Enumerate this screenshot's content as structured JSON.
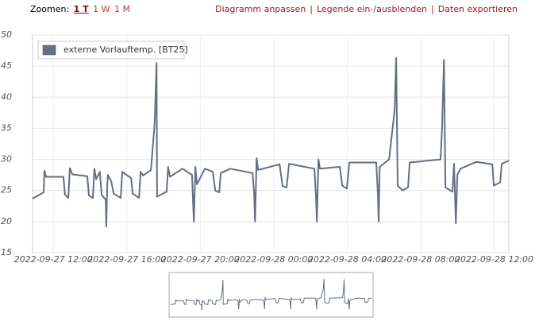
{
  "toolbar": {
    "zoom_label": "Zoomen:",
    "zoom_options": [
      "1 T",
      "1 W",
      "1 M"
    ],
    "separator": "|",
    "links": [
      "Diagramm anpassen",
      "Legende ein-/ausblenden",
      "Daten exportieren"
    ]
  },
  "chart_data": {
    "type": "line",
    "x": [
      "2022-09-27 10:52",
      "2022-09-27 11:28",
      "2022-09-27 11:31",
      "2022-09-27 11:36",
      "2022-09-27 12:33",
      "2022-09-27 12:38",
      "2022-09-27 12:49",
      "2022-09-27 12:54",
      "2022-09-27 13:02",
      "2022-09-27 13:51",
      "2022-09-27 13:56",
      "2022-09-27 14:09",
      "2022-09-27 14:14",
      "2022-09-27 14:20",
      "2022-09-27 14:32",
      "2022-09-27 14:38",
      "2022-09-27 14:51",
      "2022-09-27 14:53",
      "2022-09-27 14:56",
      "2022-09-27 14:58",
      "2022-09-27 15:09",
      "2022-09-27 15:17",
      "2022-09-27 15:40",
      "2022-09-27 15:45",
      "2022-09-27 16:14",
      "2022-09-27 16:19",
      "2022-09-27 16:40",
      "2022-09-27 16:45",
      "2022-09-27 16:53",
      "2022-09-27 17:19",
      "2022-09-27 17:31",
      "2022-09-27 17:37",
      "2022-09-27 17:39",
      "2022-09-27 18:10",
      "2022-09-27 18:15",
      "2022-09-27 18:21",
      "2022-09-27 19:02",
      "2022-09-27 19:33",
      "2022-09-27 19:39",
      "2022-09-27 19:44",
      "2022-09-27 19:49",
      "2022-09-27 20:15",
      "2022-09-27 20:41",
      "2022-09-27 20:49",
      "2022-09-27 21:02",
      "2022-09-27 21:07",
      "2022-09-27 21:38",
      "2022-09-27 22:51",
      "2022-09-27 22:56",
      "2022-09-27 22:59",
      "2022-09-27 23:04",
      "2022-09-27 23:09",
      "2022-09-28 00:19",
      "2022-09-28 00:29",
      "2022-09-28 00:42",
      "2022-09-28 00:50",
      "2022-09-28 02:13",
      "2022-09-28 02:18",
      "2022-09-28 02:21",
      "2022-09-28 02:26",
      "2022-09-28 02:31",
      "2022-09-28 03:36",
      "2022-09-28 03:44",
      "2022-09-28 03:59",
      "2022-09-28 04:07",
      "2022-09-28 05:35",
      "2022-09-28 05:40",
      "2022-09-28 05:43",
      "2022-09-28 05:46",
      "2022-09-28 06:17",
      "2022-09-28 06:35",
      "2022-09-28 06:40",
      "2022-09-28 06:45",
      "2022-09-28 07:01",
      "2022-09-28 07:19",
      "2022-09-28 07:24",
      "2022-09-28 09:05",
      "2022-09-28 09:10",
      "2022-09-28 09:16",
      "2022-09-28 09:21",
      "2022-09-28 09:44",
      "2022-09-28 09:49",
      "2022-09-28 09:55",
      "2022-09-28 10:00",
      "2022-09-28 10:10",
      "2022-09-28 11:02",
      "2022-09-28 11:54",
      "2022-09-28 11:59",
      "2022-09-28 12:20",
      "2022-09-28 12:25",
      "2022-09-28 12:48"
    ],
    "series": [
      {
        "name": "externe Vorlauftemp. [BT25]",
        "color": "#666e85",
        "values": [
          23.7,
          24.7,
          28.2,
          27.2,
          27.2,
          24.3,
          23.8,
          28.6,
          27.6,
          27.3,
          24.2,
          23.8,
          28.5,
          26.8,
          28.0,
          24.3,
          23.5,
          19.2,
          26,
          27.5,
          26.5,
          24.5,
          23.8,
          28,
          27,
          24.5,
          23.8,
          28,
          27.4,
          28.3,
          36,
          45.5,
          24,
          24.8,
          28.8,
          27.2,
          28.5,
          27.5,
          20,
          28.8,
          26,
          28.5,
          28,
          25,
          24.7,
          27.8,
          28.5,
          27.8,
          24.5,
          20,
          30.2,
          28.3,
          29.2,
          25.7,
          25.5,
          29.3,
          28.5,
          24,
          20,
          30,
          28.5,
          28.8,
          25.8,
          25.3,
          29.5,
          29.5,
          24.5,
          20,
          28.8,
          30,
          38,
          46.3,
          25.8,
          25,
          25.5,
          29.5,
          30,
          35,
          46,
          25.5,
          24.8,
          29.3,
          19.7,
          27.5,
          28.5,
          29.6,
          29.2,
          25.8,
          26.3,
          29.3,
          29.8
        ]
      }
    ],
    "xlim": [
      "2022-09-27 10:52",
      "2022-09-28 12:48"
    ],
    "xticks": [
      "2022-09-27 12:00",
      "2022-09-27 16:00",
      "2022-09-27 20:00",
      "2022-09-28 00:00",
      "2022-09-28 04:00",
      "2022-09-28 08:00",
      "2022-09-28 12:00"
    ],
    "ylim": [
      15,
      50
    ],
    "yticks": [
      15,
      20,
      25,
      30,
      35,
      40,
      45,
      50
    ],
    "grid": true,
    "legend": "upper left"
  }
}
